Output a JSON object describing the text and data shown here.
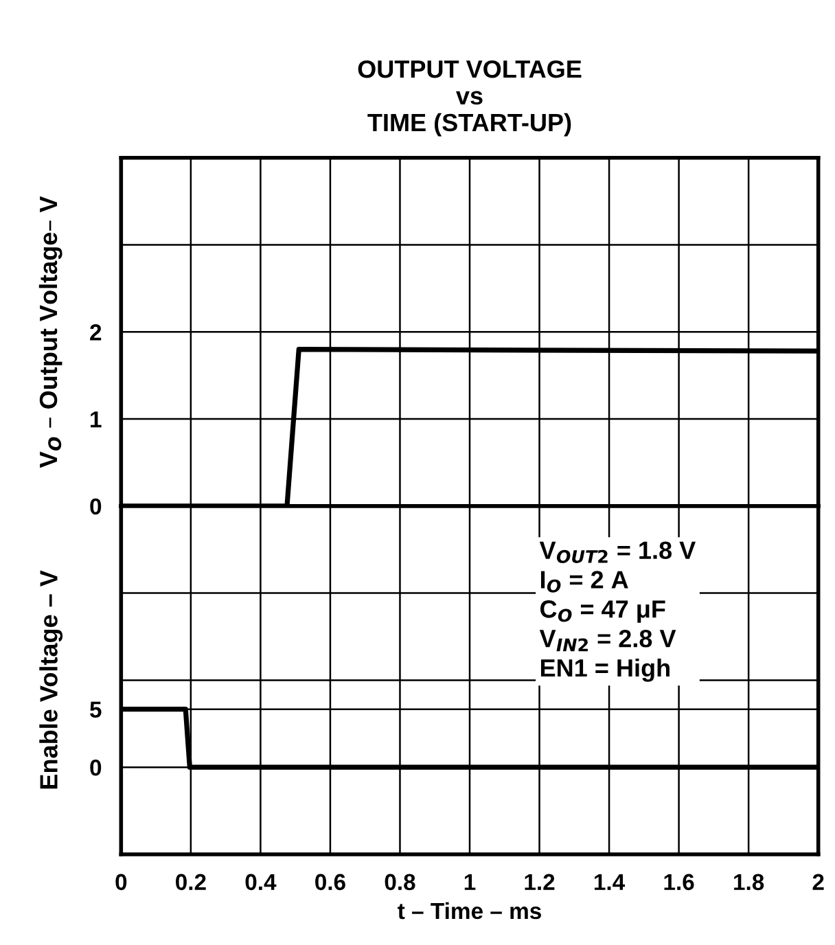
{
  "chart_data": [
    {
      "type": "line",
      "title": "OUTPUT VOLTAGE\nvs\nTIME (START-UP)",
      "ylabel": "V$_{O}$ – Output Voltage– V",
      "xlim": [
        0,
        2
      ],
      "xticks": [
        0,
        0.2,
        0.4,
        0.6,
        0.8,
        1,
        1.2,
        1.4,
        1.6,
        1.8,
        2
      ],
      "ylim": [
        0,
        4
      ],
      "yticks": [
        0,
        1,
        2,
        {
          "value": 3,
          "label": null
        },
        {
          "value": 4,
          "label": null
        }
      ],
      "grid": true,
      "tick_labels": "y",
      "series": [
        {
          "color": "#000000",
          "x": [
            0,
            0.476,
            0.51,
            2
          ],
          "values": [
            0,
            0,
            1.8,
            1.78
          ]
        }
      ]
    },
    {
      "type": "line",
      "ylabel": "Enable Voltage – V",
      "xlabel": "t – Time – ms",
      "xlim": [
        0,
        2
      ],
      "xticks": [
        0,
        0.2,
        0.4,
        0.6,
        0.8,
        1,
        1.2,
        1.4,
        1.6,
        1.8,
        2
      ],
      "ylim": [
        -7.5,
        22.5
      ],
      "yticks": [
        0,
        5,
        {
          "value": 7.5,
          "label": null
        },
        {
          "value": 15,
          "label": null
        }
      ],
      "grid": true,
      "annotations": [
        "V$_{OUT2}$ = 1.8 V\nI$_{O}$ = 2 A\nC$_{O}$ = 47 μF\nV$_{IN2}$ = 2.8 V\nEN1 = High"
      ],
      "series": [
        {
          "color": "#000000",
          "x": [
            0,
            0.185,
            0.197,
            2
          ],
          "values": [
            5,
            5,
            0,
            0
          ]
        }
      ]
    }
  ]
}
